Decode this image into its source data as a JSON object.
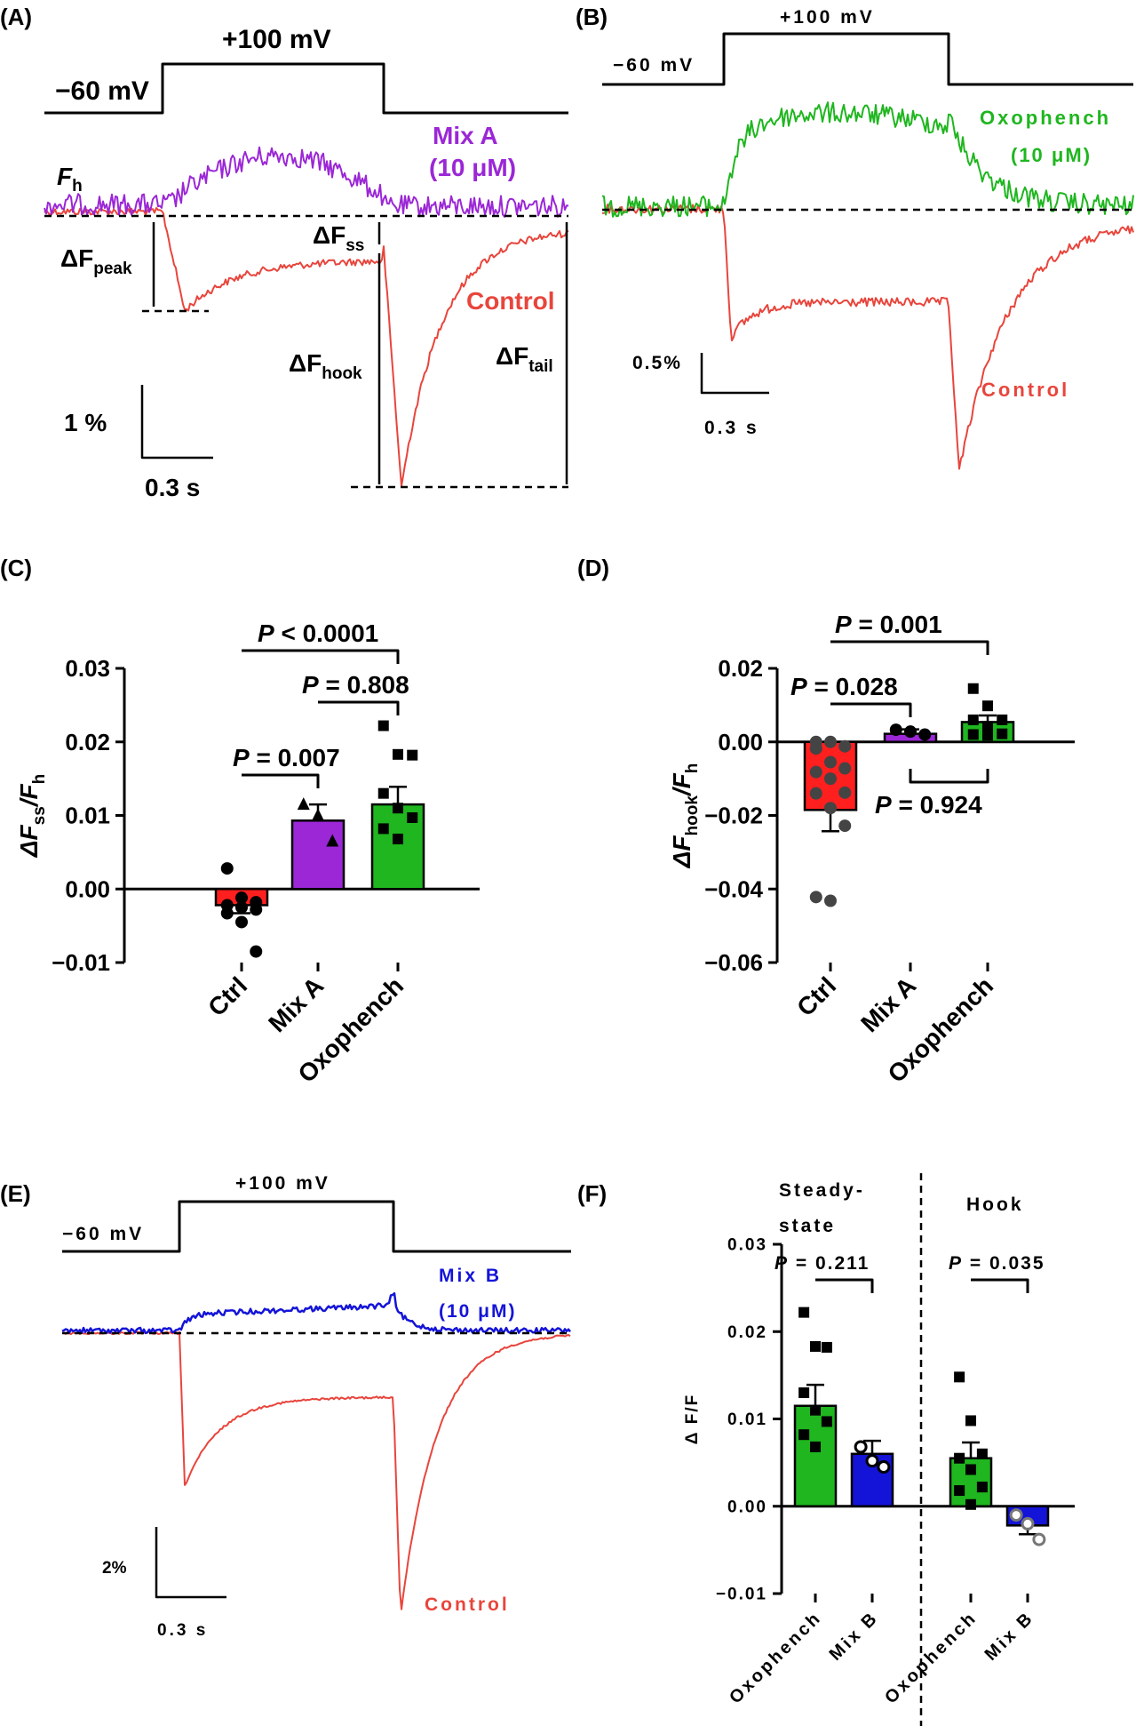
{
  "colors": {
    "control": "#e8453c",
    "mix_a": "#9b27d6",
    "oxophench": "#1fb61f",
    "mix_b": "#1414d8",
    "ctrl_bar": "#ff1f1f",
    "mix_a_bar": "#9b27d6",
    "oxo_bar": "#1fb61f",
    "mix_b_bar": "#1414d8",
    "black": "#000000"
  },
  "panels": {
    "A": {
      "label": "(A)",
      "voltage_hold": "−60 mV",
      "voltage_step": "+100 mV",
      "trace_drug": "Mix A",
      "trace_drug_conc": "(10 μM)",
      "trace_control": "Control",
      "fh": "F",
      "fh_sub": "h",
      "dpeak": "ΔF",
      "dpeak_sub": "peak",
      "dss": "ΔF",
      "dss_sub": "ss",
      "dhook": "ΔF",
      "dhook_sub": "hook",
      "dtail": "ΔF",
      "dtail_sub": "tail",
      "scale_y": "1 %",
      "scale_x": "0.3 s"
    },
    "B": {
      "label": "(B)",
      "voltage_hold": "−60 mV",
      "voltage_step": "+100 mV",
      "trace_drug": "Oxophench",
      "trace_drug_conc": "(10 μM)",
      "trace_control": "Control",
      "scale_y": "0.5%",
      "scale_x": "0.3 s"
    },
    "C": {
      "label": "(C)"
    },
    "D": {
      "label": "(D)"
    },
    "E": {
      "label": "(E)",
      "voltage_hold": "−60 mV",
      "voltage_step": "+100 mV",
      "trace_drug": "Mix B",
      "trace_drug_conc": "(10 μM)",
      "trace_control": "Control",
      "scale_y": "2%",
      "scale_x": "0.3 s"
    },
    "F": {
      "label": "(F)"
    }
  },
  "chart_data": [
    {
      "panel": "C",
      "type": "bar",
      "ylabel": "ΔF",
      "ylabel_sub": "ss",
      "ylabel_tail": "/F",
      "ylabel_tail_sub": "h",
      "categories": [
        "Ctrl",
        "Mix A",
        "Oxophench"
      ],
      "values": [
        -0.0022,
        0.0093,
        0.0115
      ],
      "sem": [
        0.0011,
        0.0022,
        0.0024
      ],
      "points": [
        [
          0.0028,
          -0.0012,
          -0.0018,
          -0.0022,
          -0.0025,
          -0.0028,
          -0.0033,
          -0.0045,
          -0.0085
        ],
        [
          0.0115,
          0.01,
          0.0065
        ],
        [
          0.0222,
          0.0183,
          0.0182,
          0.013,
          0.011,
          0.0097,
          0.0082,
          0.0068
        ]
      ],
      "ylim": [
        -0.01,
        0.03
      ],
      "yticks": [
        "0.03",
        "0.02",
        "0.01",
        "0.00",
        "−0.01"
      ],
      "ytick_values": [
        0.03,
        0.02,
        0.01,
        0.0,
        -0.01
      ],
      "annotations": [
        {
          "text": "P = 0.007",
          "from": 0,
          "to": 1
        },
        {
          "text": "P = 0.808",
          "from": 1,
          "to": 2
        },
        {
          "text": "P < 0.0001",
          "from": 0,
          "to": 2
        }
      ]
    },
    {
      "panel": "D",
      "type": "bar",
      "ylabel": "ΔF",
      "ylabel_sub": "hook",
      "ylabel_tail": "/F",
      "ylabel_tail_sub": "h",
      "categories": [
        "Ctrl",
        "Mix A",
        "Oxophench"
      ],
      "values": [
        -0.0185,
        0.0022,
        0.0054
      ],
      "sem": [
        0.0058,
        0.0012,
        0.0018
      ],
      "points": [
        [
          0.0,
          0.0,
          -0.0012,
          -0.0018,
          -0.0055,
          -0.0072,
          -0.0082,
          -0.01,
          -0.0138,
          -0.014,
          -0.018,
          -0.0228,
          -0.0422,
          -0.0432
        ],
        [
          0.0033,
          0.0028,
          0.002
        ],
        [
          0.0145,
          0.0098,
          0.006,
          0.006,
          0.0042,
          0.0022,
          0.002,
          0.0018
        ]
      ],
      "ylim": [
        -0.06,
        0.02
      ],
      "yticks": [
        "0.02",
        "0.00",
        "−0.02",
        "−0.04",
        "−0.06"
      ],
      "ytick_values": [
        0.02,
        0.0,
        -0.02,
        -0.04,
        -0.06
      ],
      "annotations": [
        {
          "text": "P = 0.028",
          "from": 0,
          "to": 1
        },
        {
          "text": "P = 0.001",
          "from": 0,
          "to": 2
        },
        {
          "text": "P = 0.924",
          "from": 1,
          "to": 2
        }
      ]
    },
    {
      "panel": "F",
      "type": "bar",
      "ylabel": "Δ F/F",
      "groups": [
        "Steady-",
        "state",
        "Hook"
      ],
      "categories": [
        "Oxophench",
        "Mix B",
        "Oxophench",
        "Mix B"
      ],
      "values": [
        0.0115,
        0.006,
        0.0055,
        -0.0022
      ],
      "sem": [
        0.0024,
        0.0015,
        0.0018,
        0.001
      ],
      "points": [
        [
          0.0222,
          0.0183,
          0.0182,
          0.013,
          0.011,
          0.0097,
          0.0082,
          0.0068
        ],
        [
          0.0068,
          0.0052,
          0.0045
        ],
        [
          0.0148,
          0.0098,
          0.006,
          0.0055,
          0.0042,
          0.0022,
          0.0018,
          0.0002
        ],
        [
          -0.001,
          -0.002,
          -0.0038
        ]
      ],
      "ylim": [
        -0.01,
        0.03
      ],
      "yticks": [
        "0.03",
        "0.02",
        "0.01",
        "0.00",
        "−0.01"
      ],
      "ytick_values": [
        0.03,
        0.02,
        0.01,
        0.0,
        -0.01
      ],
      "annotations": [
        {
          "text": "P = 0.211",
          "from": 0,
          "to": 1
        },
        {
          "text": "P = 0.035",
          "from": 2,
          "to": 3
        }
      ]
    }
  ]
}
